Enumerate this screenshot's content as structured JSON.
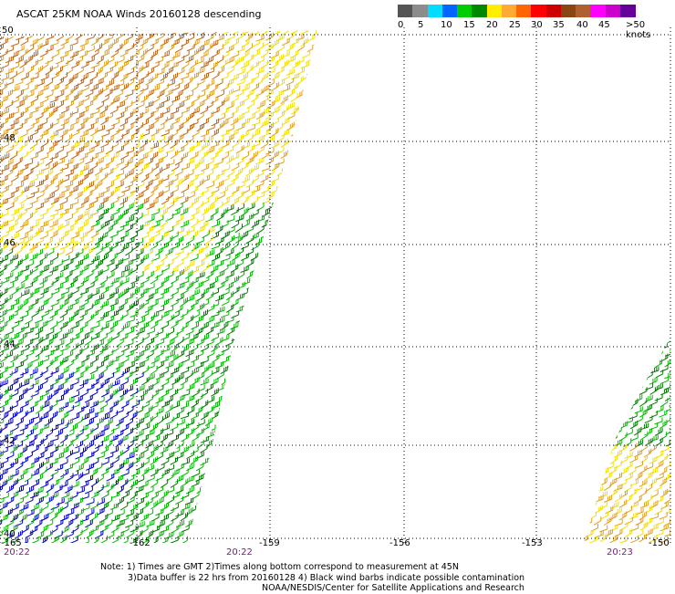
{
  "title": "ASCAT 25KM NOAA Winds 20160128 descending",
  "legend": {
    "colors": [
      "#555555",
      "#8c8c8c",
      "#00ddff",
      "#0066ff",
      "#00cc00",
      "#008800",
      "#ffee00",
      "#ffaa33",
      "#ff6600",
      "#ff0000",
      "#cc0000",
      "#8b4513",
      "#b06030",
      "#ff00ff",
      "#cc00cc",
      "#660099"
    ],
    "labels": [
      "0",
      "5",
      "10",
      "15",
      "20",
      "25",
      "30",
      "35",
      "40",
      "45",
      ">50 knots"
    ]
  },
  "map": {
    "lat_labels": [
      "50",
      "48",
      "46",
      "44",
      "42",
      "40"
    ],
    "lon_labels": [
      "-165",
      "-162",
      "-159",
      "-156",
      "-153",
      "-150"
    ],
    "time_labels": [
      "20:22",
      "20:22",
      "20:23"
    ],
    "wind_colors": {
      "blue": "#0000cc",
      "green": "#00bb00",
      "darkgreen": "#007700",
      "yellow": "#f2e000",
      "orange": "#e0a020",
      "brown": "#c06818"
    }
  },
  "footer": {
    "note1": "Note: 1) Times are GMT 2)Times along bottom correspond to measurement at 45N",
    "note2": "3)Data buffer is 22 hrs from 20160128 4) Black wind barbs indicate possible contamination",
    "credit": "NOAA/NESDIS/Center for Satellite Applications and Research"
  }
}
